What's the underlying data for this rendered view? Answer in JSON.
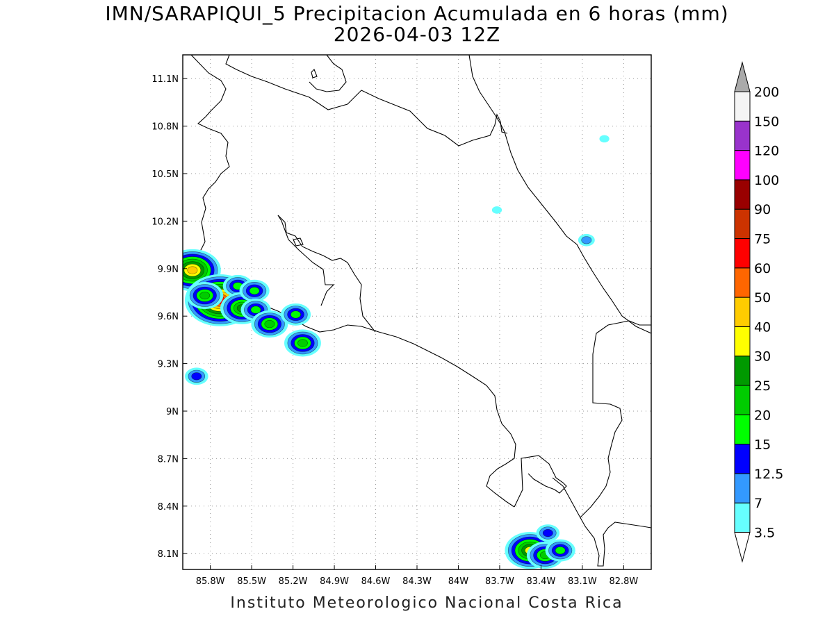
{
  "title": {
    "line1": "IMN/SARAPIQUI_5 Precipitacion Acumulada en 6 horas (mm)",
    "line2": "2026-04-03 12Z"
  },
  "footer": "Instituto Meteorologico Nacional Costa Rica",
  "map": {
    "lon_range": [
      -86.0,
      -82.6
    ],
    "lat_range": [
      8.0,
      11.25
    ],
    "x_ticks": [
      "85.8W",
      "85.5W",
      "85.2W",
      "84.9W",
      "84.6W",
      "84.3W",
      "84W",
      "83.7W",
      "83.4W",
      "83.1W",
      "82.8W"
    ],
    "x_tick_values": [
      -85.8,
      -85.5,
      -85.2,
      -84.9,
      -84.6,
      -84.3,
      -84.0,
      -83.7,
      -83.4,
      -83.1,
      -82.8
    ],
    "y_ticks": [
      "11.1N",
      "10.8N",
      "10.5N",
      "10.2N",
      "9.9N",
      "9.6N",
      "9.3N",
      "9N",
      "8.7N",
      "8.4N",
      "8.1N"
    ],
    "y_tick_values": [
      11.1,
      10.8,
      10.5,
      10.2,
      9.9,
      9.6,
      9.3,
      9.0,
      8.7,
      8.4,
      8.1
    ],
    "gridlines": "dotted"
  },
  "colorbar": {
    "labels": [
      "3.5",
      "7",
      "12.5",
      "15",
      "20",
      "25",
      "30",
      "40",
      "50",
      "60",
      "75",
      "90",
      "100",
      "120",
      "150",
      "200"
    ],
    "colors": [
      "#66ffff",
      "#3399ff",
      "#0000ff",
      "#00ff00",
      "#00cc00",
      "#009900",
      "#ffff00",
      "#ffcc00",
      "#ff6600",
      "#ff0000",
      "#cc3300",
      "#990000",
      "#ff00ff",
      "#9933cc",
      "#f5f5f5"
    ],
    "over_color": "#aaaaaa",
    "under_color": "#ffffff"
  },
  "precip_cells": [
    {
      "lon": -85.93,
      "lat": 9.89,
      "level": 7
    },
    {
      "lon": -85.73,
      "lat": 9.7,
      "level": 9
    },
    {
      "lon": -85.6,
      "lat": 9.79,
      "level": 3
    },
    {
      "lon": -85.57,
      "lat": 9.65,
      "level": 5
    },
    {
      "lon": -85.48,
      "lat": 9.76,
      "level": 3
    },
    {
      "lon": -85.47,
      "lat": 9.64,
      "level": 3
    },
    {
      "lon": -85.37,
      "lat": 9.55,
      "level": 4
    },
    {
      "lon": -85.18,
      "lat": 9.61,
      "level": 3
    },
    {
      "lon": -85.13,
      "lat": 9.43,
      "level": 4
    },
    {
      "lon": -85.84,
      "lat": 9.73,
      "level": 4
    },
    {
      "lon": -85.9,
      "lat": 9.22,
      "level": 2
    },
    {
      "lon": -83.48,
      "lat": 8.12,
      "level": 6
    },
    {
      "lon": -83.37,
      "lat": 8.09,
      "level": 4
    },
    {
      "lon": -83.26,
      "lat": 8.12,
      "level": 3
    },
    {
      "lon": -83.35,
      "lat": 8.23,
      "level": 2
    },
    {
      "lon": -83.07,
      "lat": 10.08,
      "level": 1
    },
    {
      "lon": -83.72,
      "lat": 10.27,
      "level": 0
    },
    {
      "lon": -82.94,
      "lat": 10.72,
      "level": 0
    }
  ]
}
